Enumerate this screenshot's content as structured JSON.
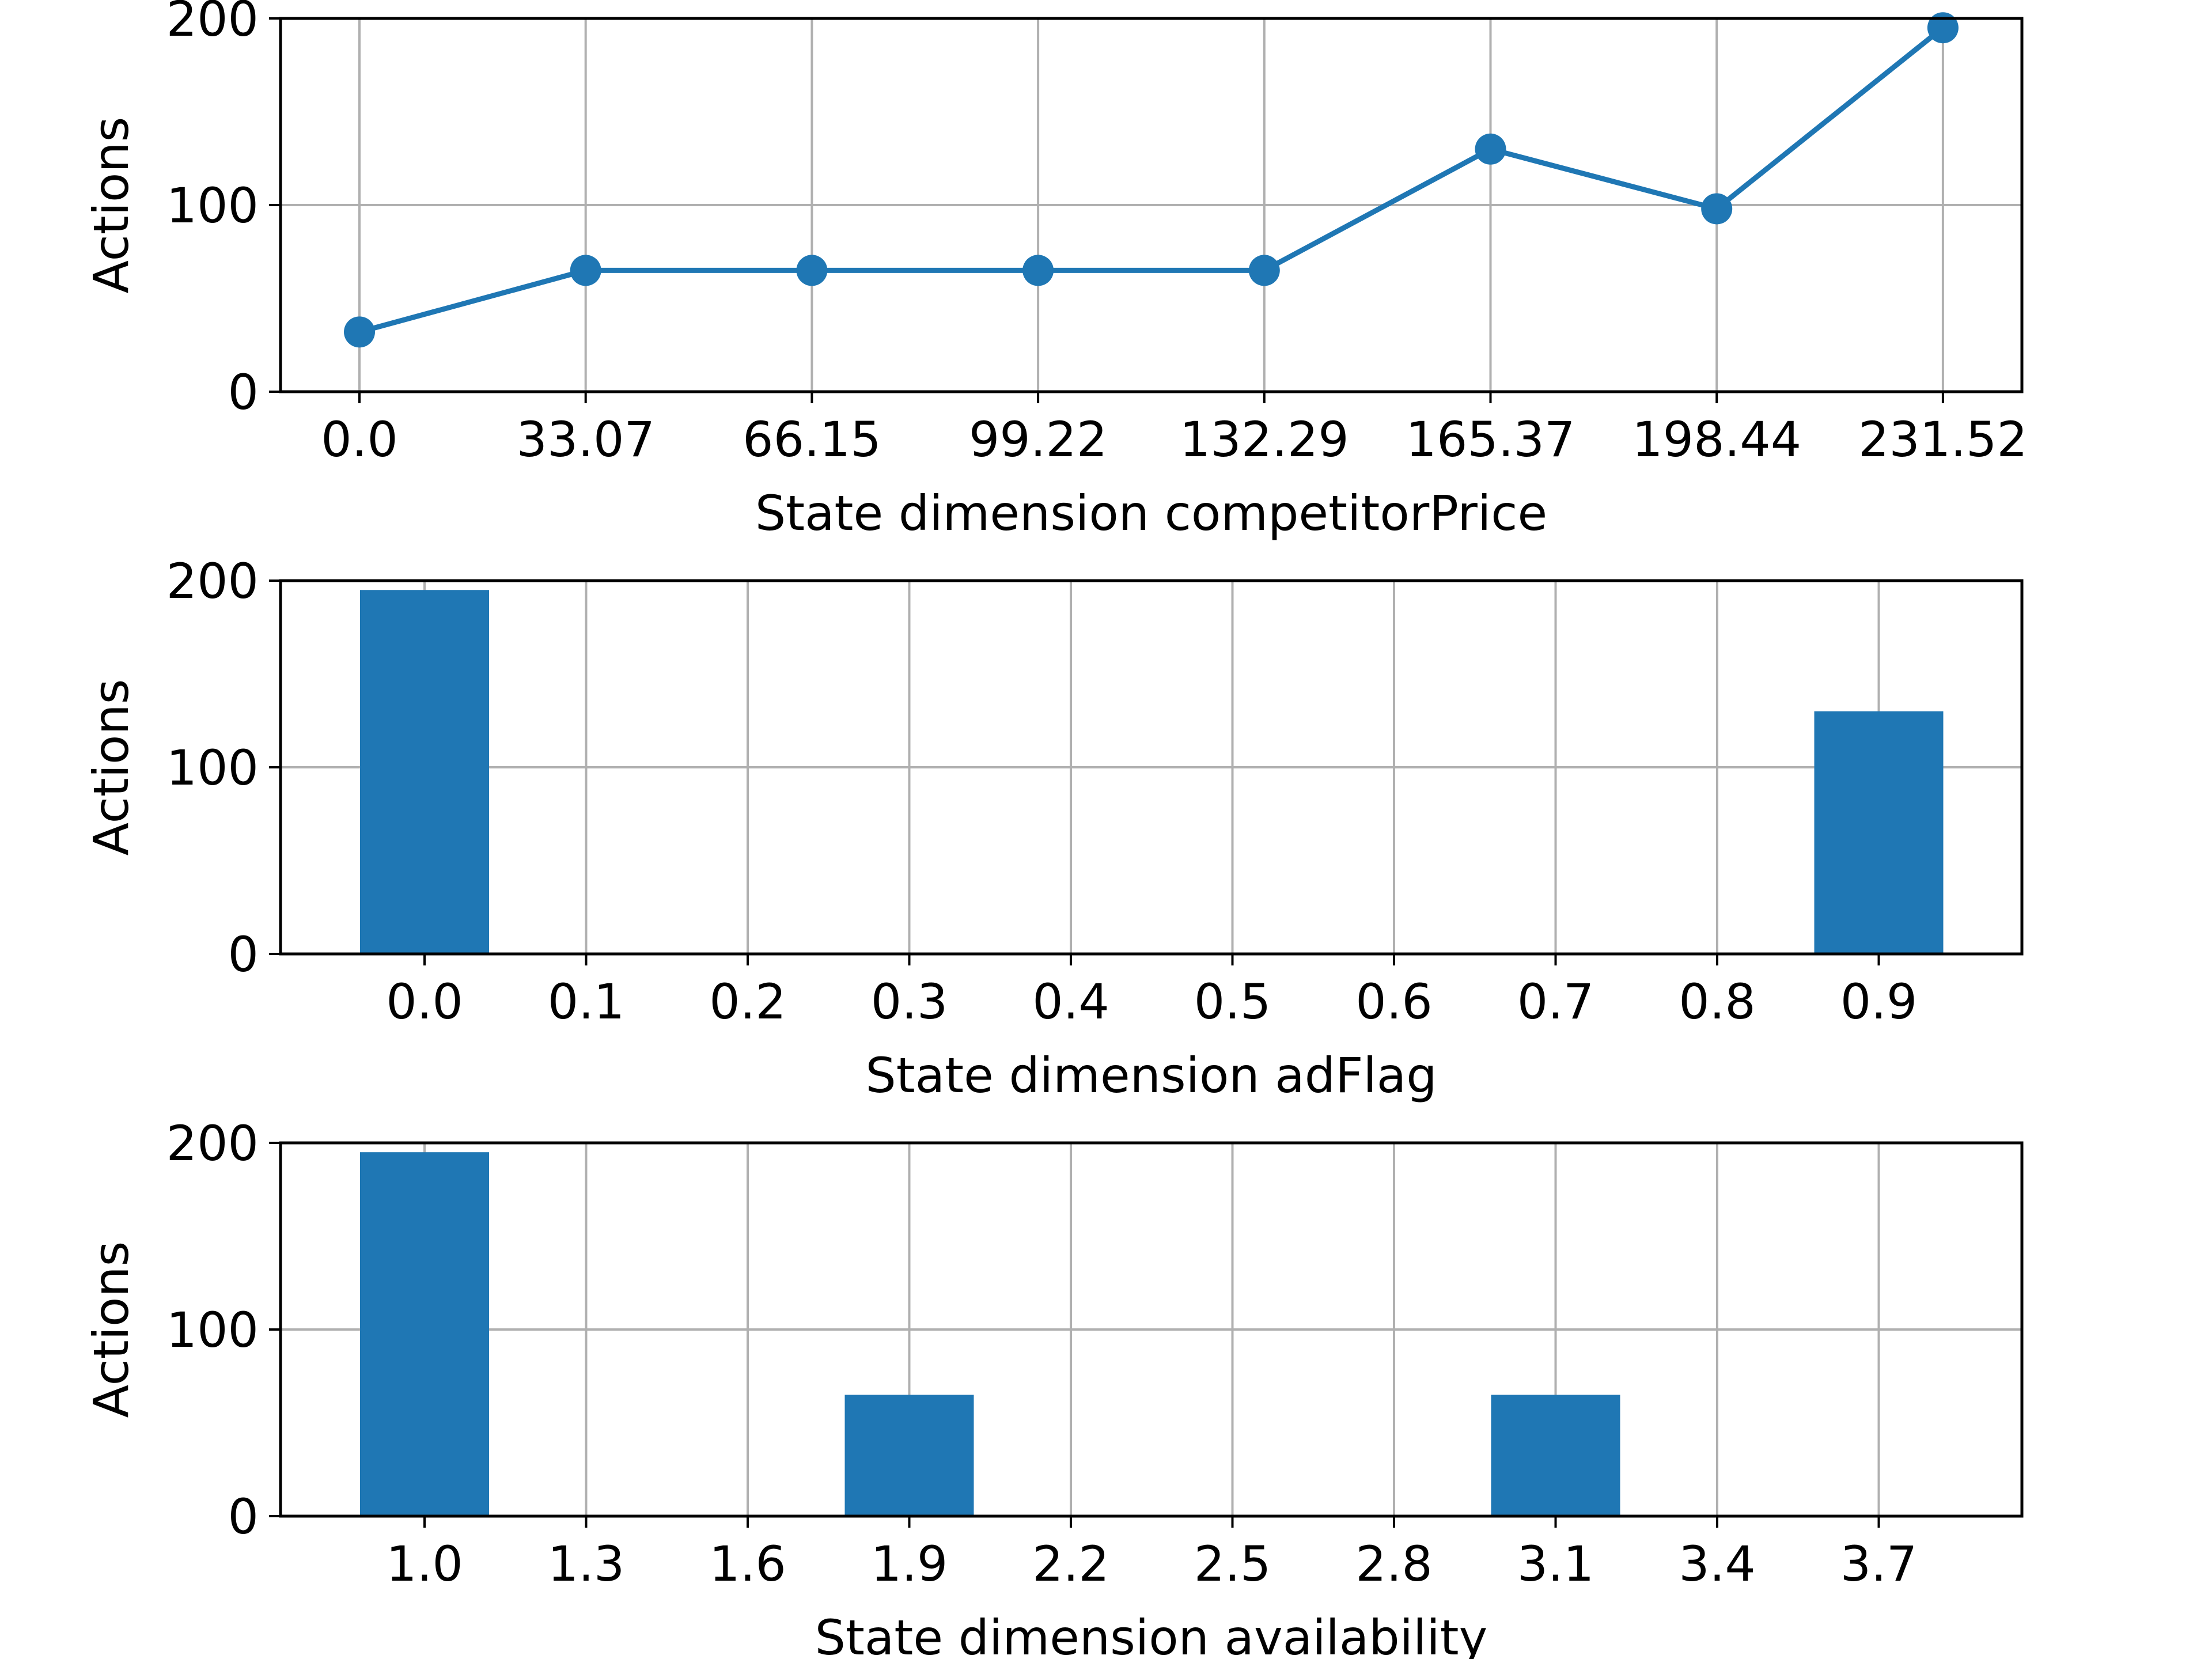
{
  "chart_data": [
    {
      "type": "line",
      "color": "#1f77b4",
      "marker": "circle",
      "x_tick_labels": [
        "0.0",
        "33.07",
        "66.15",
        "99.22",
        "132.29",
        "165.37",
        "198.44",
        "231.52"
      ],
      "values": [
        32,
        65,
        65,
        65,
        65,
        130,
        98,
        195
      ],
      "xlabel": "State dimension competitorPrice",
      "ylabel": "Actions",
      "ylim": [
        0,
        200
      ],
      "yticks": [
        0,
        100,
        200
      ],
      "grid": true
    },
    {
      "type": "bar",
      "color": "#1f77b4",
      "x_tick_labels": [
        "0.0",
        "0.1",
        "0.2",
        "0.3",
        "0.4",
        "0.5",
        "0.6",
        "0.7",
        "0.8",
        "0.9"
      ],
      "values": [
        195,
        0,
        0,
        0,
        0,
        0,
        0,
        0,
        0,
        130
      ],
      "xlabel": "State dimension adFlag",
      "ylabel": "Actions",
      "ylim": [
        0,
        200
      ],
      "yticks": [
        0,
        100,
        200
      ],
      "grid": true
    },
    {
      "type": "bar",
      "color": "#1f77b4",
      "x_tick_labels": [
        "1.0",
        "1.3",
        "1.6",
        "1.9",
        "2.2",
        "2.5",
        "2.8",
        "3.1",
        "3.4",
        "3.7"
      ],
      "values": [
        195,
        0,
        0,
        65,
        0,
        0,
        0,
        65,
        0,
        0
      ],
      "xlabel": "State dimension availability",
      "ylabel": "Actions",
      "ylim": [
        0,
        200
      ],
      "yticks": [
        0,
        100,
        200
      ],
      "grid": true
    }
  ]
}
